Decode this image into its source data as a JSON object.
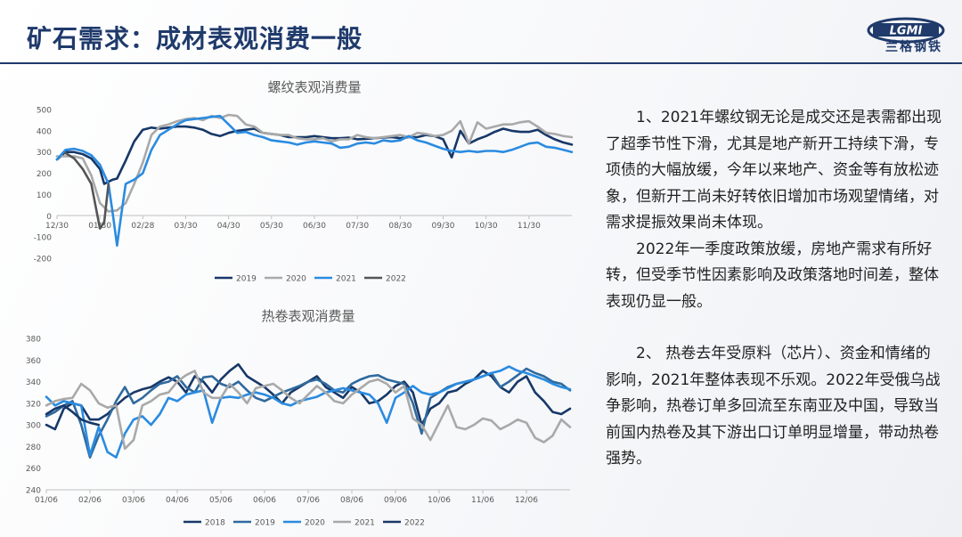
{
  "page": {
    "title": "矿石需求：成材表观消费一般"
  },
  "logo": {
    "text": "兰格钢铁",
    "mark": "LGMI"
  },
  "body": {
    "para1": "1、2021年螺纹钢无论是成交还是表需都出现了超季节性下滑，尤其是地产新开工持续下滑，专项债的大幅放缓，今年以来地产、资金等有放松迹象，但新开工尚未好转依旧增加市场观望情绪，对需求提振效果尚未体现。",
    "para2": "2022年一季度政策放缓，房地产需求有所好转，但受季节性因素影响及政策落地时间差，整体表现仍显一般。",
    "para3": "2、 热卷去年受原料（芯片）、资金和情绪的影响，2021年整体表现不乐观。2022年受俄乌战争影响，热卷订单多回流至东南亚及中国，导致当前国内热卷及其下游出口订单明显增量，带动热卷强势。"
  },
  "chart_data": [
    {
      "type": "line",
      "title": "螺纹表观消费量",
      "xlabel": "",
      "ylabel": "",
      "ylim": [
        -200,
        500
      ],
      "y_ticks": [
        "500",
        "400",
        "300",
        "200",
        "100",
        "0",
        "-100",
        "-200"
      ],
      "x_ticks": [
        "12/30",
        "01/30",
        "02/28",
        "03/30",
        "04/30",
        "05/30",
        "06/30",
        "07/30",
        "08/30",
        "09/30",
        "10/30",
        "11/30"
      ],
      "grid": false,
      "legend": "bottom",
      "series": [
        {
          "name": "2019",
          "color": "#173868",
          "width": 2.6,
          "x": [
            0,
            2,
            4,
            6,
            8,
            10,
            11,
            12,
            13,
            14,
            16,
            18,
            20,
            22,
            24,
            26,
            28,
            30,
            32,
            34,
            36,
            38,
            40,
            42,
            44,
            46,
            47,
            48,
            50,
            52,
            54,
            56,
            58,
            60,
            62,
            64,
            66,
            68,
            70,
            72,
            74,
            76,
            78,
            80,
            82,
            84,
            86,
            88,
            90,
            92,
            94,
            96,
            98,
            100,
            102,
            104,
            106,
            108,
            110,
            112,
            114,
            116,
            118,
            120
          ],
          "y": [
            265,
            300,
            300,
            290,
            270,
            220,
            150,
            160,
            170,
            175,
            260,
            350,
            405,
            415,
            410,
            415,
            420,
            420,
            415,
            405,
            385,
            375,
            390,
            400,
            405,
            410,
            400,
            390,
            385,
            380,
            370,
            370,
            370,
            375,
            370,
            365,
            365,
            368,
            360,
            362,
            365,
            368,
            370,
            365,
            370,
            370,
            380,
            375,
            360,
            275,
            400,
            340,
            360,
            375,
            395,
            410,
            400,
            395,
            395,
            405,
            380,
            360,
            345,
            335
          ]
        },
        {
          "name": "2020",
          "color": "#a9a9a9",
          "width": 2.6,
          "x": [
            0,
            2,
            4,
            6,
            8,
            10,
            12,
            14,
            16,
            18,
            20,
            22,
            24,
            26,
            28,
            30,
            32,
            34,
            36,
            38,
            40,
            42,
            44,
            46,
            48,
            50,
            52,
            54,
            56,
            58,
            60,
            62,
            64,
            66,
            68,
            70,
            72,
            74,
            76,
            78,
            80,
            82,
            84,
            86,
            88,
            90,
            92,
            94,
            96,
            98,
            100,
            102,
            104,
            106,
            108,
            110,
            112,
            114,
            116,
            118,
            120
          ],
          "y": [
            280,
            280,
            280,
            270,
            190,
            60,
            20,
            25,
            60,
            150,
            250,
            380,
            420,
            430,
            445,
            455,
            460,
            450,
            470,
            460,
            475,
            470,
            430,
            420,
            390,
            385,
            380,
            380,
            365,
            360,
            360,
            365,
            350,
            360,
            360,
            380,
            370,
            365,
            370,
            375,
            380,
            370,
            390,
            385,
            375,
            380,
            400,
            445,
            340,
            440,
            410,
            420,
            430,
            430,
            440,
            445,
            420,
            390,
            385,
            375,
            370
          ]
        },
        {
          "name": "2021",
          "color": "#2a8be0",
          "width": 2.6,
          "x": [
            0,
            2,
            4,
            6,
            8,
            10,
            12,
            13,
            14,
            15,
            16,
            18,
            20,
            22,
            24,
            26,
            28,
            30,
            32,
            34,
            36,
            38,
            40,
            42,
            44,
            46,
            48,
            50,
            52,
            54,
            56,
            58,
            60,
            62,
            64,
            66,
            68,
            70,
            72,
            74,
            76,
            78,
            80,
            82,
            84,
            86,
            88,
            90,
            92,
            94,
            96,
            98,
            100,
            102,
            104,
            106,
            108,
            110,
            112,
            114,
            116,
            118,
            120
          ],
          "y": [
            265,
            310,
            315,
            305,
            285,
            240,
            150,
            10,
            -140,
            10,
            150,
            170,
            200,
            310,
            380,
            405,
            430,
            450,
            455,
            460,
            465,
            470,
            430,
            390,
            395,
            380,
            370,
            355,
            350,
            345,
            335,
            345,
            350,
            345,
            340,
            320,
            325,
            340,
            345,
            340,
            355,
            350,
            355,
            375,
            355,
            345,
            330,
            315,
            305,
            300,
            305,
            300,
            305,
            305,
            300,
            310,
            325,
            340,
            345,
            325,
            320,
            310,
            300
          ]
        },
        {
          "name": "2022",
          "color": "#555555",
          "width": 2.6,
          "x": [
            2,
            4,
            6,
            8,
            10,
            11,
            12
          ],
          "y": [
            295,
            270,
            220,
            150,
            -60,
            -30,
            150
          ]
        }
      ]
    },
    {
      "type": "line",
      "title": "热卷表观消费量",
      "xlabel": "",
      "ylabel": "",
      "ylim": [
        240,
        380
      ],
      "y_ticks": [
        "380",
        "360",
        "340",
        "320",
        "300",
        "280",
        "260",
        "240"
      ],
      "x_ticks": [
        "01/06",
        "02/06",
        "03/06",
        "04/06",
        "05/06",
        "06/06",
        "07/06",
        "08/06",
        "09/06",
        "10/06",
        "11/06",
        "12/06"
      ],
      "grid": false,
      "legend": "bottom",
      "series": [
        {
          "name": "2018",
          "color": "#173868",
          "width": 2.6,
          "x": [
            0,
            2,
            4,
            6,
            8,
            10,
            12,
            14,
            16,
            18,
            20,
            22,
            24,
            26,
            28,
            30,
            32,
            34,
            36,
            38,
            40,
            42,
            44,
            46,
            48,
            50,
            52,
            54,
            56,
            58,
            60,
            62,
            64,
            66,
            68,
            70,
            72,
            74,
            76,
            78,
            80,
            82,
            84,
            86,
            88,
            90,
            92,
            94,
            96,
            98,
            100,
            102,
            104,
            106,
            108,
            110,
            112,
            114,
            116,
            118,
            120
          ],
          "y": [
            300,
            296,
            315,
            320,
            318,
            305,
            305,
            310,
            318,
            325,
            330,
            333,
            335,
            340,
            344,
            340,
            330,
            345,
            340,
            330,
            342,
            350,
            356,
            345,
            340,
            335,
            328,
            320,
            330,
            335,
            340,
            345,
            335,
            330,
            325,
            335,
            330,
            320,
            322,
            328,
            336,
            340,
            330,
            300,
            315,
            320,
            330,
            332,
            338,
            342,
            350,
            345,
            335,
            330,
            340,
            345,
            330,
            322,
            312,
            310,
            315
          ]
        },
        {
          "name": "2019",
          "color": "#2f6a9e",
          "width": 2.6,
          "x": [
            0,
            2,
            4,
            6,
            8,
            10,
            12,
            14,
            16,
            18,
            20,
            22,
            24,
            26,
            28,
            30,
            32,
            34,
            36,
            38,
            40,
            42,
            44,
            46,
            48,
            50,
            52,
            54,
            56,
            58,
            60,
            62,
            64,
            66,
            68,
            70,
            72,
            74,
            76,
            78,
            80,
            82,
            84,
            86,
            88,
            90,
            92,
            94,
            96,
            98,
            100,
            102,
            104,
            106,
            108,
            110,
            112,
            114,
            116,
            118,
            120
          ],
          "y": [
            308,
            312,
            318,
            322,
            300,
            270,
            290,
            305,
            322,
            335,
            320,
            325,
            332,
            338,
            340,
            345,
            335,
            330,
            344,
            345,
            338,
            335,
            340,
            332,
            325,
            322,
            326,
            330,
            333,
            336,
            340,
            342,
            338,
            332,
            330,
            338,
            342,
            345,
            346,
            342,
            340,
            338,
            320,
            292,
            325,
            330,
            335,
            338,
            340,
            342,
            345,
            348,
            335,
            340,
            346,
            352,
            348,
            345,
            340,
            338,
            332
          ]
        },
        {
          "name": "2020",
          "color": "#2a8be0",
          "width": 2.6,
          "x": [
            0,
            2,
            4,
            6,
            8,
            10,
            12,
            14,
            16,
            18,
            20,
            22,
            24,
            26,
            28,
            30,
            32,
            34,
            36,
            38,
            40,
            42,
            44,
            46,
            48,
            50,
            52,
            54,
            56,
            58,
            60,
            62,
            64,
            66,
            68,
            70,
            72,
            74,
            76,
            78,
            80,
            82,
            84,
            86,
            88,
            90,
            92,
            94,
            96,
            98,
            100,
            102,
            104,
            106,
            108,
            110,
            112,
            114,
            116,
            118,
            120
          ],
          "y": [
            326,
            318,
            322,
            320,
            318,
            272,
            298,
            275,
            270,
            292,
            305,
            308,
            300,
            310,
            325,
            322,
            328,
            330,
            332,
            302,
            325,
            326,
            325,
            328,
            330,
            328,
            325,
            320,
            318,
            322,
            324,
            326,
            330,
            332,
            334,
            332,
            330,
            328,
            320,
            302,
            325,
            330,
            336,
            330,
            328,
            330,
            334,
            338,
            340,
            342,
            345,
            348,
            350,
            354,
            350,
            348,
            345,
            342,
            338,
            335,
            333
          ]
        },
        {
          "name": "2021",
          "color": "#a9a9a9",
          "width": 2.6,
          "x": [
            0,
            2,
            4,
            6,
            8,
            10,
            12,
            14,
            16,
            18,
            20,
            22,
            24,
            26,
            28,
            30,
            32,
            34,
            36,
            38,
            40,
            42,
            44,
            46,
            48,
            50,
            52,
            54,
            56,
            58,
            60,
            62,
            64,
            66,
            68,
            70,
            72,
            74,
            76,
            78,
            80,
            82,
            84,
            86,
            88,
            90,
            92,
            94,
            96,
            98,
            100,
            102,
            104,
            106,
            108,
            110,
            112,
            114,
            116,
            118,
            120
          ],
          "y": [
            318,
            322,
            324,
            325,
            338,
            332,
            320,
            316,
            318,
            278,
            286,
            318,
            322,
            328,
            330,
            340,
            346,
            350,
            330,
            325,
            325,
            338,
            330,
            320,
            334,
            336,
            338,
            332,
            325,
            320,
            328,
            336,
            330,
            322,
            320,
            328,
            334,
            340,
            342,
            338,
            330,
            336,
            306,
            300,
            286,
            302,
            318,
            298,
            296,
            300,
            306,
            304,
            296,
            300,
            305,
            302,
            288,
            284,
            290,
            305,
            298
          ]
        },
        {
          "name": "2022",
          "color": "#173868",
          "width": 2.6,
          "x": [
            0,
            2,
            4,
            6,
            8,
            10,
            12
          ],
          "y": [
            310,
            315,
            318,
            312,
            305,
            302,
            300
          ]
        }
      ]
    }
  ]
}
